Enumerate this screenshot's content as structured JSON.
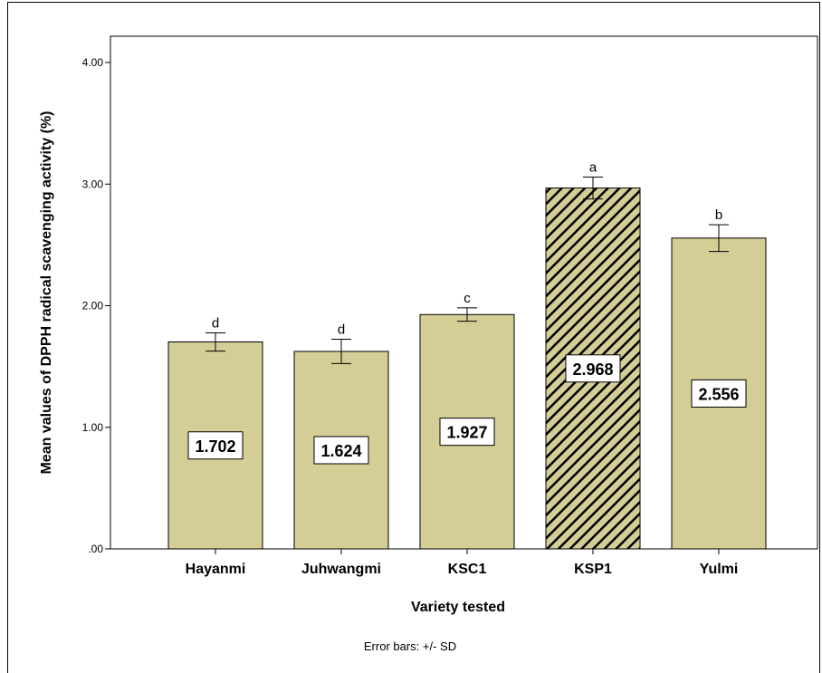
{
  "chart_data": {
    "type": "bar",
    "categories": [
      "Hayanmi",
      "Juhwangmi",
      "KSC1",
      "KSP1",
      "Yulmi"
    ],
    "values": [
      1.702,
      1.624,
      1.927,
      2.968,
      2.556
    ],
    "value_labels": [
      "1.702",
      "1.624",
      "1.927",
      "2.968",
      "2.556"
    ],
    "error_sd": [
      0.075,
      0.1,
      0.055,
      0.09,
      0.11
    ],
    "significance_letters": [
      "d",
      "d",
      "c",
      "a",
      "b"
    ],
    "highlighted_category": "KSP1",
    "xlabel": "Variety tested",
    "ylabel": "Mean values of DPPH radical scavenging activity (%)",
    "ylim": [
      0,
      4.2
    ],
    "yticks": [
      0,
      1,
      2,
      3,
      4
    ],
    "ytick_labels": [
      ".00",
      "1.00",
      "2.00",
      "3.00",
      "4.00"
    ],
    "footnote": "Error bars: +/- SD",
    "grid": false,
    "colors": {
      "bar_fill": "#d4cd96",
      "highlight_hatch_bg": "#d4cd96",
      "highlight_hatch_line": "#000000",
      "bar_stroke": "#000000"
    }
  }
}
